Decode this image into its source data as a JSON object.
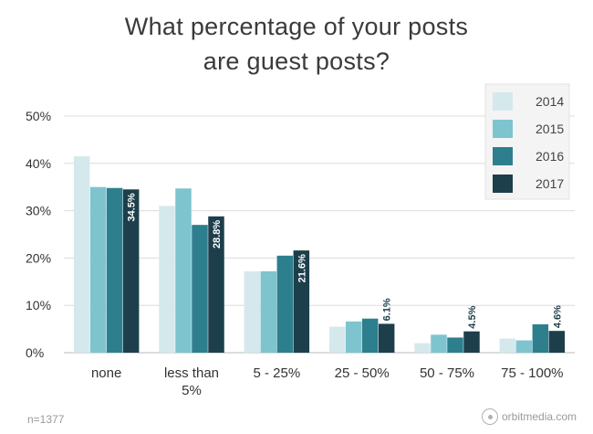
{
  "chart_data": {
    "type": "bar",
    "title_lines": [
      "What percentage of your posts",
      "are guest posts?"
    ],
    "categories": [
      [
        "none"
      ],
      [
        "less than",
        "5%"
      ],
      [
        "5 - 25%"
      ],
      [
        "25 - 50%"
      ],
      [
        "50 - 75%"
      ],
      [
        "75 - 100%"
      ]
    ],
    "series": [
      {
        "name": "2014",
        "color": "#d5e9ec",
        "values": [
          41.5,
          31.0,
          17.2,
          5.5,
          2.0,
          3.0
        ]
      },
      {
        "name": "2015",
        "color": "#7ec4cf",
        "values": [
          35.0,
          34.7,
          17.2,
          6.6,
          3.8,
          2.6
        ]
      },
      {
        "name": "2016",
        "color": "#2e7f8e",
        "values": [
          34.8,
          27.0,
          20.5,
          7.2,
          3.2,
          6.0
        ]
      },
      {
        "name": "2017",
        "color": "#1c3f4b",
        "values": [
          34.5,
          28.8,
          21.6,
          6.1,
          4.5,
          4.6
        ]
      }
    ],
    "data_labels": {
      "series": "2017",
      "labels": [
        "34.5%",
        "28.8%",
        "21.6%",
        "6.1%",
        "4.5%",
        "4.6%"
      ],
      "placement": [
        "inside",
        "inside",
        "inside",
        "above",
        "above",
        "above"
      ]
    },
    "y_ticks": [
      0,
      10,
      20,
      30,
      40,
      50
    ],
    "y_tick_labels": [
      "0%",
      "10%",
      "20%",
      "30%",
      "40%",
      "50%"
    ],
    "ylim": [
      0,
      50
    ],
    "grid": true,
    "legend_position": "top-right"
  },
  "footer": {
    "sample_size": "n=1377",
    "brand": "orbitmedia.com"
  }
}
